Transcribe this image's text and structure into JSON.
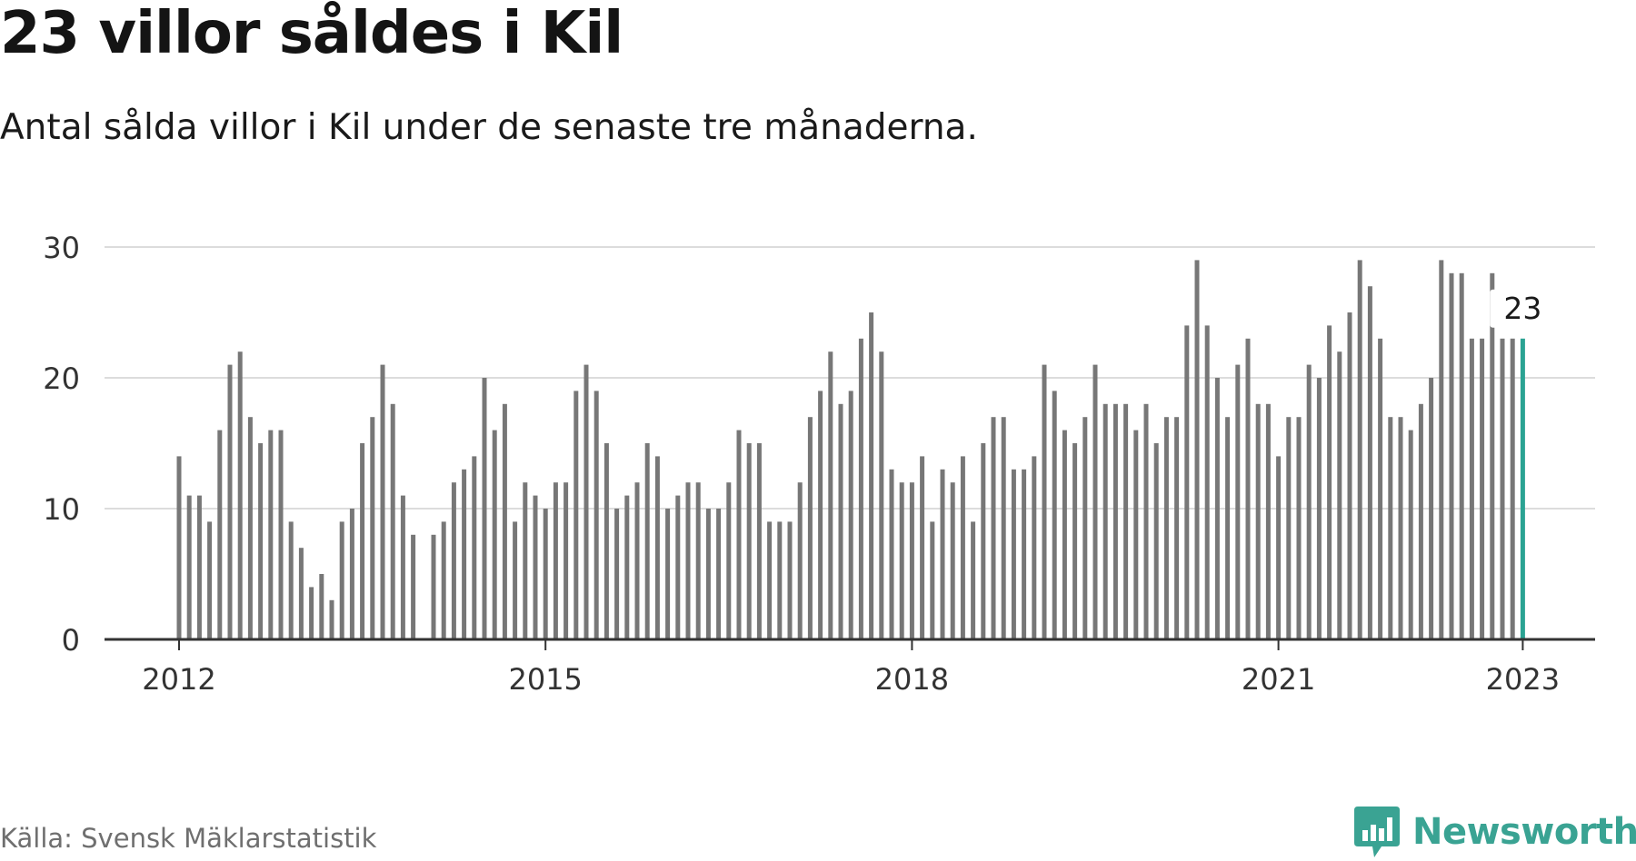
{
  "header": {
    "title": "23 villor såldes i Kil",
    "subtitle": "Antal sålda villor i Kil under de senaste tre månaderna."
  },
  "footer": {
    "source": "Källa: Svensk Mäklarstatistik",
    "brand_name": "Newsworthy",
    "brand_icon": "bar-chart-speech-bubble-icon"
  },
  "colors": {
    "bar": "#777777",
    "highlight": "#2ba393",
    "grid": "#dcdcdc",
    "axis": "#333333",
    "brand": "#3aa393"
  },
  "chart_data": {
    "type": "bar",
    "title": "23 villor såldes i Kil",
    "subtitle": "Antal sålda villor i Kil under de senaste tre månaderna.",
    "xlabel": "",
    "ylabel": "",
    "ylim": [
      0,
      30
    ],
    "yticks": [
      0,
      10,
      20,
      30
    ],
    "xticks": [
      "2012",
      "2015",
      "2018",
      "2021",
      "2023"
    ],
    "grid": "horizontal",
    "start_month": "2012-01",
    "x": [
      "2012-01",
      "2012-02",
      "2012-03",
      "2012-04",
      "2012-05",
      "2012-06",
      "2012-07",
      "2012-08",
      "2012-09",
      "2012-10",
      "2012-11",
      "2012-12",
      "2013-01",
      "2013-02",
      "2013-03",
      "2013-04",
      "2013-05",
      "2013-06",
      "2013-07",
      "2013-08",
      "2013-09",
      "2013-10",
      "2013-11",
      "2013-12",
      "2014-01",
      "2014-02",
      "2014-03",
      "2014-04",
      "2014-05",
      "2014-06",
      "2014-07",
      "2014-08",
      "2014-09",
      "2014-10",
      "2014-11",
      "2014-12",
      "2015-01",
      "2015-02",
      "2015-03",
      "2015-04",
      "2015-05",
      "2015-06",
      "2015-07",
      "2015-08",
      "2015-09",
      "2015-10",
      "2015-11",
      "2015-12",
      "2016-01",
      "2016-02",
      "2016-03",
      "2016-04",
      "2016-05",
      "2016-06",
      "2016-07",
      "2016-08",
      "2016-09",
      "2016-10",
      "2016-11",
      "2016-12",
      "2017-01",
      "2017-02",
      "2017-03",
      "2017-04",
      "2017-05",
      "2017-06",
      "2017-07",
      "2017-08",
      "2017-09",
      "2017-10",
      "2017-11",
      "2017-12",
      "2018-01",
      "2018-02",
      "2018-03",
      "2018-04",
      "2018-05",
      "2018-06",
      "2018-07",
      "2018-08",
      "2018-09",
      "2018-10",
      "2018-11",
      "2018-12",
      "2019-01",
      "2019-02",
      "2019-03",
      "2019-04",
      "2019-05",
      "2019-06",
      "2019-07",
      "2019-08",
      "2019-09",
      "2019-10",
      "2019-11",
      "2019-12",
      "2020-01",
      "2020-02",
      "2020-03",
      "2020-04",
      "2020-05",
      "2020-06",
      "2020-07",
      "2020-08",
      "2020-09",
      "2020-10",
      "2020-11",
      "2020-12",
      "2021-01",
      "2021-02",
      "2021-03",
      "2021-04",
      "2021-05",
      "2021-06",
      "2021-07",
      "2021-08",
      "2021-09",
      "2021-10",
      "2021-11",
      "2021-12",
      "2022-01",
      "2022-02",
      "2022-03",
      "2022-04",
      "2022-05",
      "2022-06",
      "2022-07",
      "2022-08",
      "2022-09",
      "2022-10",
      "2022-11",
      "2022-12",
      "2023-01"
    ],
    "values": [
      14,
      11,
      11,
      9,
      16,
      21,
      22,
      17,
      15,
      16,
      16,
      9,
      7,
      4,
      5,
      3,
      9,
      10,
      15,
      17,
      21,
      18,
      11,
      8,
      null,
      8,
      9,
      12,
      13,
      14,
      20,
      16,
      18,
      9,
      12,
      11,
      10,
      12,
      12,
      19,
      21,
      19,
      15,
      10,
      11,
      12,
      15,
      14,
      10,
      11,
      12,
      12,
      10,
      10,
      12,
      16,
      15,
      15,
      9,
      9,
      9,
      12,
      17,
      19,
      22,
      18,
      19,
      23,
      25,
      22,
      13,
      12,
      12,
      14,
      9,
      13,
      12,
      14,
      9,
      15,
      17,
      17,
      13,
      13,
      14,
      21,
      19,
      16,
      15,
      17,
      21,
      18,
      18,
      18,
      16,
      18,
      15,
      17,
      17,
      24,
      29,
      24,
      20,
      17,
      21,
      23,
      18,
      18,
      14,
      17,
      17,
      21,
      20,
      24,
      22,
      25,
      29,
      27,
      23,
      17,
      17,
      16,
      18,
      20,
      29,
      28,
      28,
      23,
      23,
      28,
      23,
      23,
      23
    ],
    "highlight": {
      "index": 132,
      "label": "23"
    }
  }
}
